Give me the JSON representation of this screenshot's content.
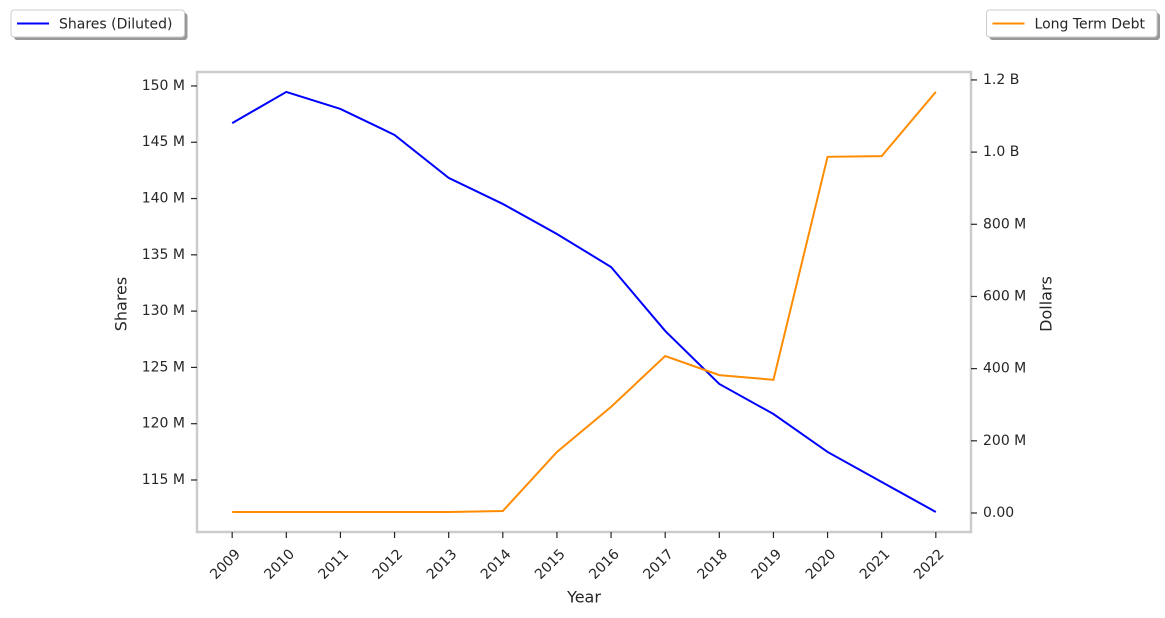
{
  "chart_data": {
    "type": "line",
    "x_label": "Year",
    "y_label": "Shares",
    "y2_label": "Dollars",
    "x": [
      2009,
      2010,
      2011,
      2012,
      2013,
      2014,
      2015,
      2016,
      2017,
      2018,
      2019,
      2020,
      2021,
      2022
    ],
    "xlim": [
      2008.35,
      2022.65
    ],
    "xticks": [
      2009,
      2010,
      2011,
      2012,
      2013,
      2014,
      2015,
      2016,
      2017,
      2018,
      2019,
      2020,
      2021,
      2022
    ],
    "ylim": [
      110380000,
      151240000
    ],
    "yticks": [
      {
        "value": 115000000,
        "label": "115 M"
      },
      {
        "value": 120000000,
        "label": "120 M"
      },
      {
        "value": 125000000,
        "label": "125 M"
      },
      {
        "value": 130000000,
        "label": "130 M"
      },
      {
        "value": 135000000,
        "label": "135 M"
      },
      {
        "value": 140000000,
        "label": "140 M"
      },
      {
        "value": 145000000,
        "label": "145 M"
      },
      {
        "value": 150000000,
        "label": "150 M"
      }
    ],
    "y2lim": [
      -52700000,
      1222000000
    ],
    "y2ticks": [
      {
        "value": 0,
        "label": "0.00"
      },
      {
        "value": 200000000,
        "label": "200 M"
      },
      {
        "value": 400000000,
        "label": "400 M"
      },
      {
        "value": 600000000,
        "label": "600 M"
      },
      {
        "value": 800000000,
        "label": "800 M"
      },
      {
        "value": 1000000000,
        "label": "1.0 B"
      },
      {
        "value": 1200000000,
        "label": "1.2 B"
      }
    ],
    "series": [
      {
        "name": "Shares (Diluted)",
        "color": "#0000ff",
        "legend": "upper left",
        "values": [
          146700000,
          149470000,
          147960000,
          145650000,
          141830000,
          139520000,
          136850000,
          133920000,
          128240000,
          123530000,
          120860000,
          117490000,
          114820000,
          112160000
        ]
      },
      {
        "name": "Long Term Debt",
        "color": "#ff8c00",
        "axis": "y2",
        "legend": "upper right",
        "values": [
          2800000,
          2800000,
          2800000,
          2800000,
          2800000,
          5500000,
          169000000,
          294000000,
          435000000,
          382000000,
          369000000,
          987000000,
          989000000,
          1167000000
        ]
      }
    ]
  }
}
